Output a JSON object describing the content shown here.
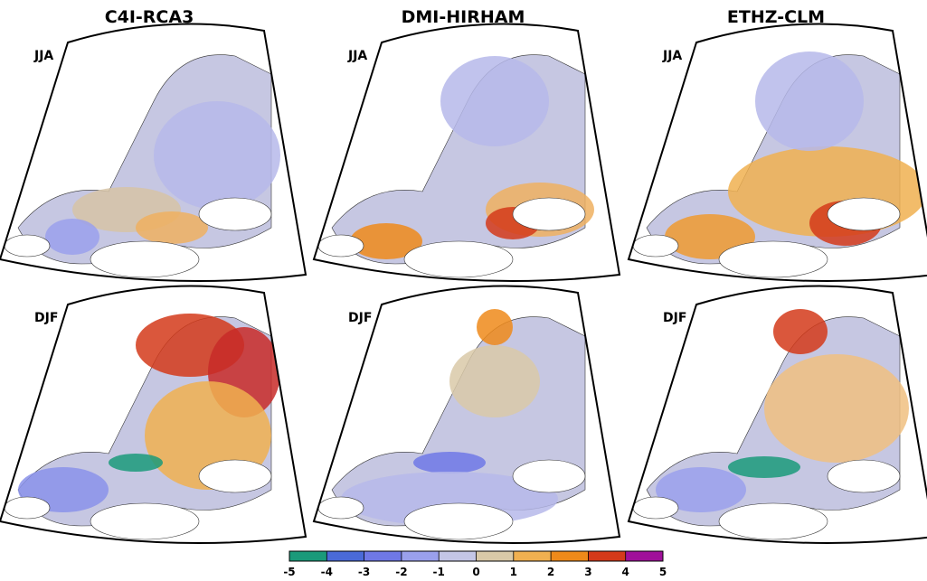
{
  "columns": [
    {
      "title": "C4I-RCA3"
    },
    {
      "title": "DMI-HIRHAM"
    },
    {
      "title": "ETHZ-CLM"
    }
  ],
  "rows": [
    {
      "label": "JJA"
    },
    {
      "label": "DJF"
    }
  ],
  "colorbar": {
    "range": [
      -5,
      5
    ],
    "ticks": [
      -5,
      -4,
      -3,
      -2,
      -1,
      0,
      1,
      2,
      3,
      4,
      5
    ],
    "colors": [
      "#1a9a7a",
      "#4a6ad8",
      "#6f78e6",
      "#9aa0ec",
      "#c4c6e6",
      "#d9c9a8",
      "#f0b050",
      "#ee8a1a",
      "#d43a1a",
      "#a0109a"
    ]
  }
}
